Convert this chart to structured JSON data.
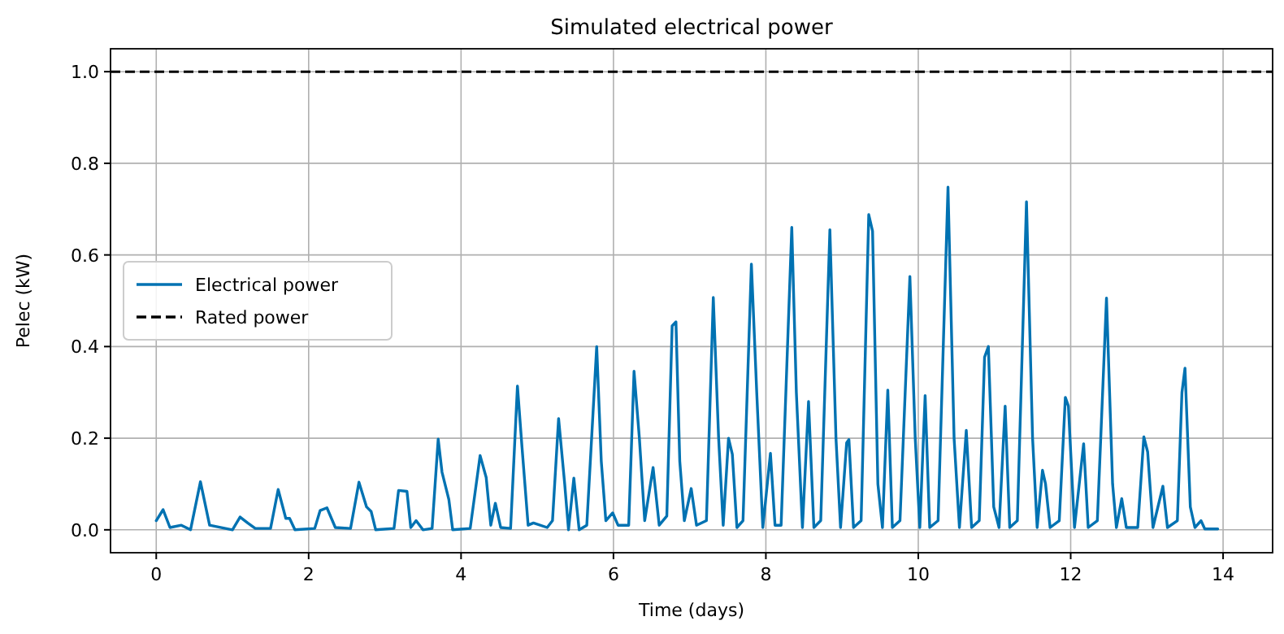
{
  "chart_data": {
    "type": "line",
    "title": "Simulated electrical power",
    "xlabel": "Time (days)",
    "ylabel": "Pelec (kW)",
    "xlim": [
      -0.6,
      14.65
    ],
    "xticks": [
      0,
      2,
      4,
      6,
      8,
      10,
      12,
      14
    ],
    "ylim": [
      -0.05,
      1.05
    ],
    "yticks": [
      {
        "value": 0,
        "label": "0.0"
      },
      0.2,
      0.4,
      0.6,
      0.8,
      {
        "value": 1,
        "label": "1.0"
      }
    ],
    "grid": true,
    "legend": "left",
    "line_style": "solid",
    "marker": "none",
    "ref_lines": [
      {
        "axis": "y",
        "value": 1,
        "label": "Rated power",
        "color": "#000000",
        "line_style": "dashed"
      }
    ],
    "series": [
      {
        "name": "Electrical power",
        "color": "#0072b2",
        "x": [
          0,
          0.09,
          0.18,
          0.33,
          0.45,
          0.58,
          0.7,
          1.0,
          1.1,
          1.2,
          1.3,
          1.5,
          1.6,
          1.7,
          1.75,
          1.82,
          2.08,
          2.15,
          2.24,
          2.35,
          2.55,
          2.66,
          2.76,
          2.82,
          2.88,
          3.12,
          3.18,
          3.29,
          3.34,
          3.41,
          3.5,
          3.62,
          3.7,
          3.75,
          3.84,
          3.89,
          4.12,
          4.25,
          4.33,
          4.39,
          4.45,
          4.52,
          4.65,
          4.74,
          4.8,
          4.88,
          4.95,
          5.13,
          5.2,
          5.28,
          5.36,
          5.41,
          5.48,
          5.55,
          5.65,
          5.78,
          5.84,
          5.9,
          5.99,
          6.06,
          6.2,
          6.27,
          6.34,
          6.41,
          6.52,
          6.6,
          6.7,
          6.77,
          6.82,
          6.87,
          6.93,
          7.02,
          7.09,
          7.22,
          7.31,
          7.38,
          7.44,
          7.51,
          7.56,
          7.62,
          7.7,
          7.81,
          7.88,
          7.96,
          8.06,
          8.12,
          8.2,
          8.34,
          8.4,
          8.48,
          8.56,
          8.63,
          8.72,
          8.84,
          8.92,
          8.98,
          9.06,
          9.09,
          9.15,
          9.25,
          9.35,
          9.4,
          9.47,
          9.53,
          9.6,
          9.66,
          9.76,
          9.89,
          9.96,
          10.02,
          10.09,
          10.15,
          10.26,
          10.39,
          10.47,
          10.54,
          10.63,
          10.7,
          10.8,
          10.87,
          10.92,
          10.99,
          11.06,
          11.14,
          11.2,
          11.3,
          11.42,
          11.5,
          11.56,
          11.63,
          11.67,
          11.73,
          11.85,
          11.93,
          11.97,
          12.05,
          12.17,
          12.23,
          12.35,
          12.47,
          12.55,
          12.6,
          12.67,
          12.73,
          12.88,
          12.96,
          13.01,
          13.08,
          13.21,
          13.27,
          13.4,
          13.46,
          13.5,
          13.57,
          13.63,
          13.71,
          13.76,
          13.93
        ],
        "values": [
          0.02,
          0.044,
          0.005,
          0.01,
          0,
          0.105,
          0.01,
          0,
          0.028,
          0.015,
          0.003,
          0.003,
          0.088,
          0.025,
          0.025,
          0,
          0.003,
          0.042,
          0.048,
          0.005,
          0.003,
          0.104,
          0.05,
          0.04,
          0,
          0.003,
          0.086,
          0.084,
          0.005,
          0.02,
          0,
          0.003,
          0.198,
          0.126,
          0.066,
          0,
          0.003,
          0.162,
          0.114,
          0.01,
          0.058,
          0.005,
          0.003,
          0.314,
          0.18,
          0.01,
          0.015,
          0.005,
          0.02,
          0.243,
          0.1,
          0,
          0.113,
          0,
          0.01,
          0.4,
          0.15,
          0.02,
          0.037,
          0.01,
          0.01,
          0.346,
          0.2,
          0.02,
          0.136,
          0.01,
          0.03,
          0.445,
          0.454,
          0.15,
          0.02,
          0.09,
          0.01,
          0.02,
          0.507,
          0.2,
          0.01,
          0.2,
          0.165,
          0.005,
          0.02,
          0.58,
          0.3,
          0.005,
          0.167,
          0.01,
          0.01,
          0.66,
          0.3,
          0.005,
          0.28,
          0.005,
          0.02,
          0.655,
          0.2,
          0.005,
          0.19,
          0.197,
          0.005,
          0.02,
          0.688,
          0.652,
          0.1,
          0.005,
          0.305,
          0.005,
          0.02,
          0.553,
          0.2,
          0.005,
          0.293,
          0.005,
          0.02,
          0.748,
          0.2,
          0.005,
          0.217,
          0.005,
          0.02,
          0.377,
          0.4,
          0.05,
          0.005,
          0.27,
          0.005,
          0.02,
          0.716,
          0.2,
          0.005,
          0.13,
          0.1,
          0.005,
          0.02,
          0.289,
          0.27,
          0.005,
          0.188,
          0.005,
          0.02,
          0.506,
          0.1,
          0.005,
          0.068,
          0.005,
          0.005,
          0.203,
          0.17,
          0.005,
          0.095,
          0.005,
          0.02,
          0.3,
          0.353,
          0.05,
          0.005,
          0.02,
          0.002,
          0.002
        ]
      }
    ]
  }
}
